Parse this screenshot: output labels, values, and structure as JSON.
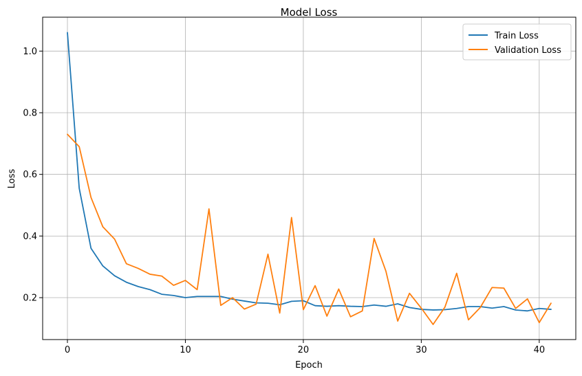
{
  "chart_data": {
    "type": "line",
    "title": "Model Loss",
    "xlabel": "Epoch",
    "ylabel": "Loss",
    "xlim": [
      -2.1,
      43.1
    ],
    "ylim": [
      0.064,
      1.11
    ],
    "x_ticks": [
      0,
      10,
      20,
      30,
      40
    ],
    "y_ticks": [
      0.2,
      0.4,
      0.6,
      0.8,
      1.0
    ],
    "x_tick_labels": [
      "0",
      "10",
      "20",
      "30",
      "40"
    ],
    "y_tick_labels": [
      "0.2",
      "0.4",
      "0.6",
      "0.8",
      "1.0"
    ],
    "grid": true,
    "legend_position": "top-right",
    "x": [
      0,
      1,
      2,
      3,
      4,
      5,
      6,
      7,
      8,
      9,
      10,
      11,
      12,
      13,
      14,
      15,
      16,
      17,
      18,
      19,
      20,
      21,
      22,
      23,
      24,
      25,
      26,
      27,
      28,
      29,
      30,
      31,
      32,
      33,
      34,
      35,
      36,
      37,
      38,
      39,
      40,
      41
    ],
    "series": [
      {
        "name": "Train Loss",
        "color": "#1f77b4",
        "values": [
          1.06,
          0.555,
          0.36,
          0.303,
          0.271,
          0.25,
          0.236,
          0.226,
          0.211,
          0.207,
          0.2,
          0.204,
          0.204,
          0.204,
          0.195,
          0.189,
          0.183,
          0.182,
          0.177,
          0.188,
          0.19,
          0.174,
          0.172,
          0.174,
          0.172,
          0.171,
          0.176,
          0.172,
          0.18,
          0.168,
          0.162,
          0.16,
          0.161,
          0.165,
          0.171,
          0.171,
          0.166,
          0.171,
          0.16,
          0.157,
          0.165,
          0.162
        ]
      },
      {
        "name": "Validation Loss",
        "color": "#ff7f0e",
        "values": [
          0.73,
          0.69,
          0.525,
          0.43,
          0.39,
          0.31,
          0.295,
          0.276,
          0.27,
          0.24,
          0.256,
          0.226,
          0.488,
          0.175,
          0.2,
          0.163,
          0.179,
          0.341,
          0.15,
          0.46,
          0.161,
          0.239,
          0.14,
          0.228,
          0.138,
          0.157,
          0.392,
          0.286,
          0.124,
          0.214,
          0.166,
          0.113,
          0.169,
          0.279,
          0.128,
          0.168,
          0.233,
          0.231,
          0.165,
          0.196,
          0.119,
          0.182
        ]
      }
    ]
  }
}
